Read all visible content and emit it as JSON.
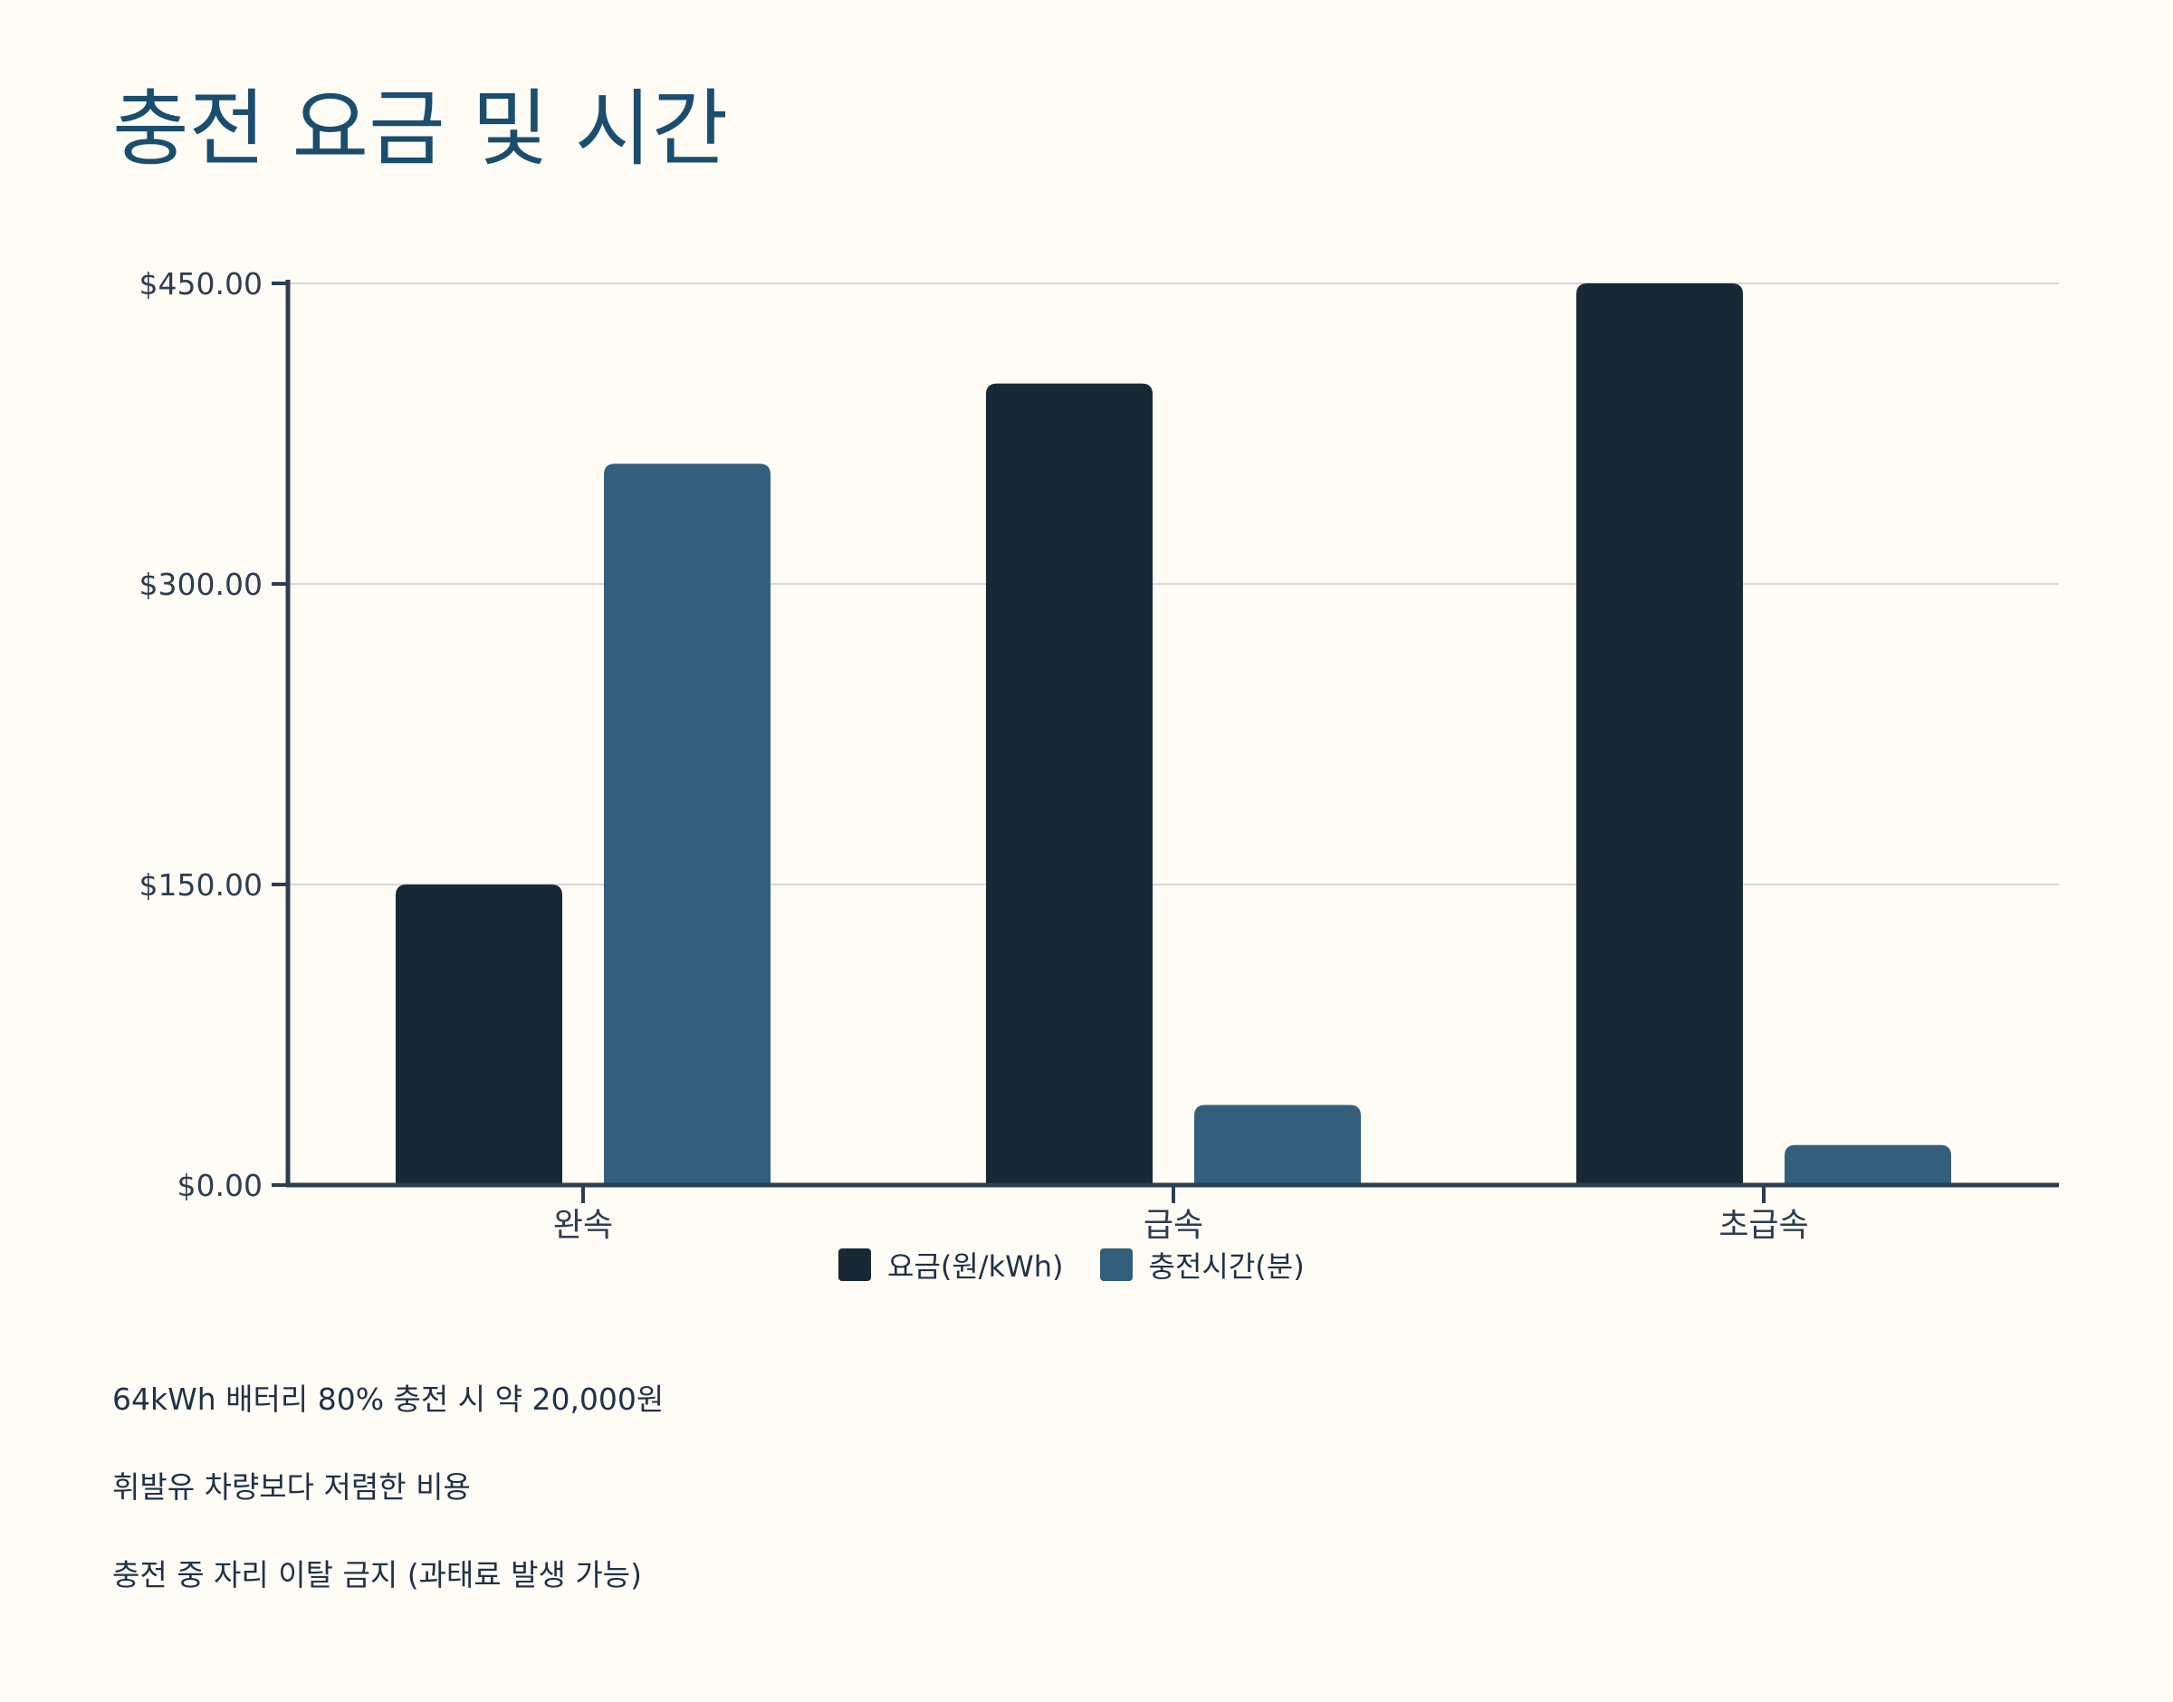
{
  "title": "충전 요금 및 시간",
  "chart_data": {
    "type": "bar",
    "categories": [
      "완속",
      "급속",
      "초급속"
    ],
    "series": [
      {
        "name": "요금(원/kWh)",
        "values": [
          150,
          400,
          450
        ],
        "color": "#172935"
      },
      {
        "name": "충전시간(분)",
        "values": [
          360,
          40,
          20
        ],
        "color": "#335f7c"
      }
    ],
    "y_ticks": [
      0,
      150,
      300,
      450
    ],
    "y_tick_labels": [
      "$0.00",
      "$150.00",
      "$300.00",
      "$450.00"
    ],
    "ylim": [
      0,
      450
    ],
    "grid": true,
    "legend_position": "bottom"
  },
  "notes": [
    "64kWh 배터리 80% 충전 시 약 20,000원",
    "휘발유 차량보다 저렴한 비용",
    "충전 중 자리 이탈 금지 (과태료 발생 가능)"
  ],
  "colors": {
    "background": "#fffcf5",
    "title": "#1a4d6e",
    "axis": "#2c3e50",
    "grid": "#d6d6d6"
  }
}
